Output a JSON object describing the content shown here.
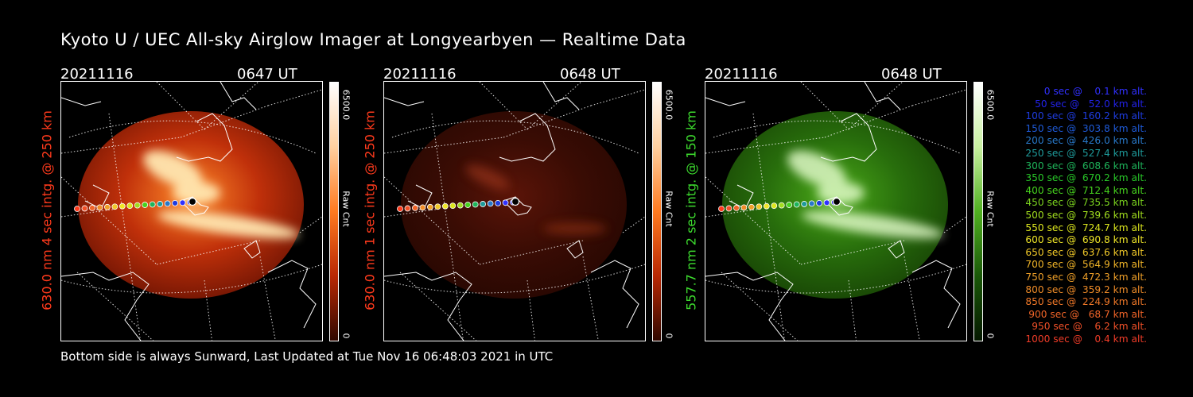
{
  "title": "Kyoto U / UEC All-sky Airglow Imager at Longyearbyen — Realtime Data",
  "footer": "Bottom side is always Sunward, Last Updated at Tue Nov 16 06:48:03 2021 in UTC",
  "panels": [
    {
      "date": "20211116",
      "time": "0647 UT",
      "ylabel": "630.0 nm 4 sec intg. @ 250 km",
      "label_color": "#ff3a1c",
      "cb_max": "6500.0",
      "cb_unit": "Raw Cnt",
      "cb_min": "0",
      "colorscale": "red",
      "intensity": "bright"
    },
    {
      "date": "20211116",
      "time": "0648 UT",
      "ylabel": "630.0 nm 1 sec intg. @ 250 km",
      "label_color": "#ff3a1c",
      "cb_max": "6500.0",
      "cb_unit": "Raw Cnt",
      "cb_min": "0",
      "colorscale": "red",
      "intensity": "dim"
    },
    {
      "date": "20211116",
      "time": "0648 UT",
      "ylabel": "557.7 nm 2 sec intg. @ 150 km",
      "label_color": "#3ddc2e",
      "cb_max": "6500.0",
      "cb_unit": "Raw Cnt",
      "cb_min": "0",
      "colorscale": "green",
      "intensity": "medium"
    }
  ],
  "legend": [
    {
      "text": "0 sec @    0.1 km alt.",
      "color": "#3030ff"
    },
    {
      "text": "50 sec @   52.0 km alt.",
      "color": "#2222e8"
    },
    {
      "text": "100 sec @  160.2 km alt.",
      "color": "#1e3ce0"
    },
    {
      "text": "150 sec @  303.8 km alt.",
      "color": "#1e5ad8"
    },
    {
      "text": "200 sec @  426.0 km alt.",
      "color": "#2878c8"
    },
    {
      "text": "250 sec @  527.4 km alt.",
      "color": "#1e9a9a"
    },
    {
      "text": "300 sec @  608.6 km alt.",
      "color": "#1eb45a"
    },
    {
      "text": "350 sec @  670.2 km alt.",
      "color": "#28c828"
    },
    {
      "text": "400 sec @  712.4 km alt.",
      "color": "#46d21e"
    },
    {
      "text": "450 sec @  735.5 km alt.",
      "color": "#7ad21e"
    },
    {
      "text": "500 sec @  739.6 km alt.",
      "color": "#a0dc1e"
    },
    {
      "text": "550 sec @  724.7 km alt.",
      "color": "#dce61e"
    },
    {
      "text": "600 sec @  690.8 km alt.",
      "color": "#f0e628"
    },
    {
      "text": "650 sec @  637.6 km alt.",
      "color": "#f0c828"
    },
    {
      "text": "700 sec @  564.9 km alt.",
      "color": "#f0b428"
    },
    {
      "text": "750 sec @  472.3 km alt.",
      "color": "#f0a028"
    },
    {
      "text": "800 sec @  359.2 km alt.",
      "color": "#f08c28"
    },
    {
      "text": "850 sec @  224.9 km alt.",
      "color": "#f07828"
    },
    {
      "text": "900 sec @   68.7 km alt.",
      "color": "#f06428"
    },
    {
      "text": "950 sec @    6.2 km alt.",
      "color": "#f05028"
    },
    {
      "text": "1000 sec @    0.4 km alt.",
      "color": "#f03c28"
    }
  ],
  "track_colors": [
    "#ff3a1c",
    "#f05028",
    "#f06428",
    "#f08c28",
    "#f0a028",
    "#f0c828",
    "#f0e628",
    "#dce61e",
    "#a0dc1e",
    "#46d21e",
    "#1eb45a",
    "#1e9a9a",
    "#2878c8",
    "#1e3ce0",
    "#3030ff",
    "#2222e8"
  ]
}
